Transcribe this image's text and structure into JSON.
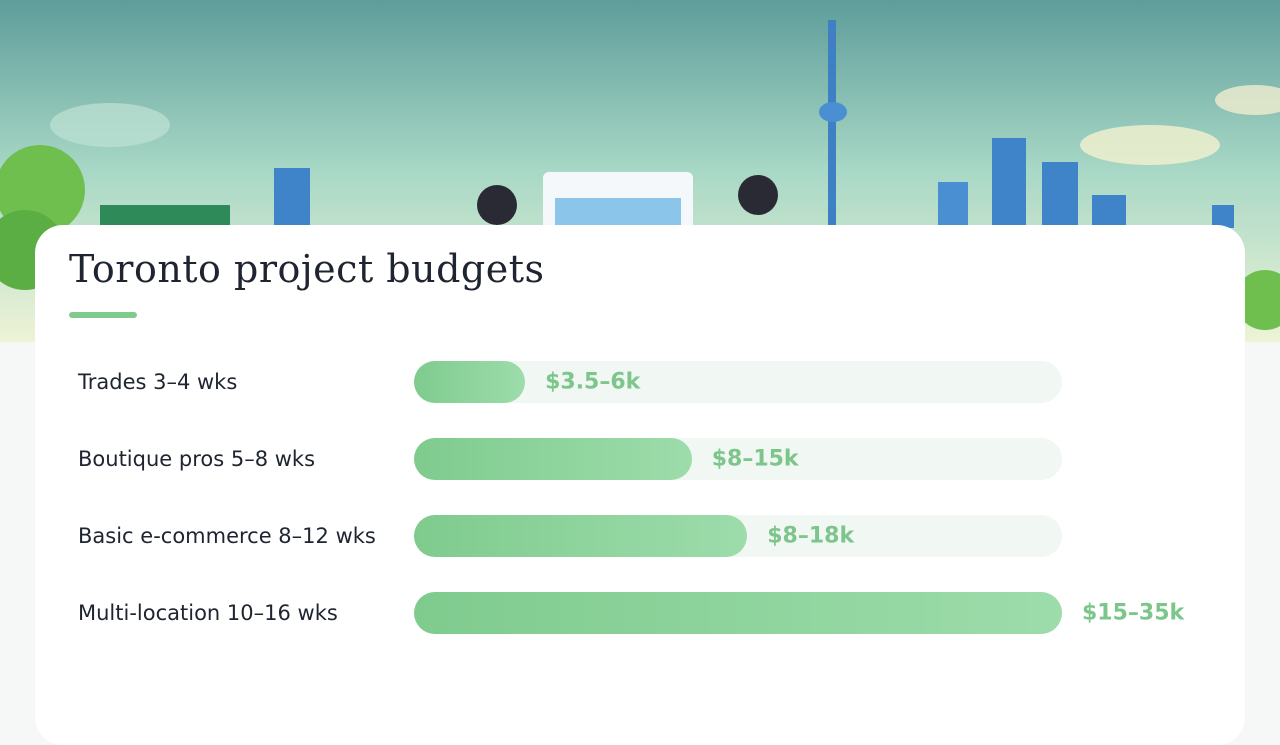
{
  "chart_data": {
    "type": "bar",
    "orientation": "horizontal",
    "title": "Toronto project budgets",
    "categories": [
      "Trades 3–4 wks",
      "Boutique pros 5–8 wks",
      "Basic e-commerce 8–12 wks",
      "Multi-location 10–16 wks"
    ],
    "values": [
      6000,
      15000,
      18000,
      35000
    ],
    "value_labels": [
      "$3.5–6k",
      "$8–15k",
      "$8–18k",
      "$15–35k"
    ],
    "xlim": [
      0,
      35000
    ],
    "color": "#7fcb8e"
  }
}
